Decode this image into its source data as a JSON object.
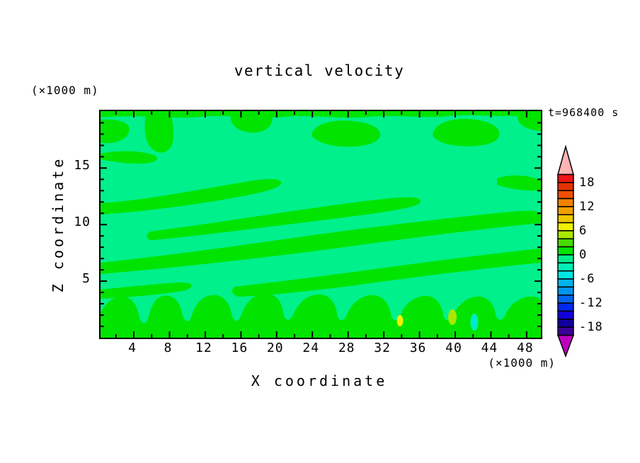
{
  "title": "vertical velocity",
  "time_label": "t=968400 s",
  "x_axis": {
    "label": "X coordinate",
    "unit_label": "(×1000 m)",
    "ticks": [
      4,
      8,
      12,
      16,
      20,
      24,
      28,
      32,
      36,
      40,
      44,
      48
    ],
    "minor_ticks": [
      2,
      6,
      10,
      14,
      18,
      22,
      26,
      30,
      34,
      38,
      42,
      46
    ],
    "range": [
      0,
      49.3
    ]
  },
  "y_axis": {
    "label": "Z coordinate",
    "unit_label": "(×1000 m)",
    "ticks": [
      5,
      10,
      15
    ],
    "minor_step": 1,
    "range": [
      0,
      20
    ]
  },
  "colorbar": {
    "tick_labels": [
      18,
      12,
      6,
      0,
      -6,
      -12,
      -18
    ],
    "range": [
      -20,
      20
    ],
    "segment_step": 2,
    "segment_colors_top_to_bottom": [
      "#F01414",
      "#E63200",
      "#F05000",
      "#F08200",
      "#F0A000",
      "#F0C800",
      "#F0F000",
      "#AAE800",
      "#46DC00",
      "#00E400",
      "#00F08C",
      "#00EEB8",
      "#00E6E6",
      "#00B4F0",
      "#0096F0",
      "#0064F0",
      "#0028F0",
      "#1400DC",
      "#0F00A0",
      "#3C0096"
    ],
    "over_color": "#FFB4B4",
    "under_color": "#BE00BE"
  },
  "chart_data": {
    "type": "heatmap",
    "title": "vertical velocity",
    "xlabel": "X coordinate (×1000 m)",
    "ylabel": "Z coordinate (×1000 m)",
    "annotation": "t=968400 s",
    "xlim": [
      0,
      49.3
    ],
    "ylim": [
      0,
      20
    ],
    "contour_levels": [
      -20,
      -18,
      -16,
      -14,
      -12,
      -10,
      -8,
      -6,
      -4,
      -2,
      0,
      2,
      4,
      6,
      8,
      10,
      12,
      14,
      16,
      18,
      20
    ],
    "colors": {
      "background": "#00F08C",
      "band": "#00E400",
      "spot_yellow": "#F0F000",
      "spot_yellow_green": "#AAE800",
      "spot_cyan": "#00E6E6",
      "spot_mint": "#00EEB8",
      "frame": "#000000"
    },
    "field_summary": {
      "description": "vertical velocity field dominated by values between -2 and 2; background shade is the -2..0 band, wavy diagonal stripes and bottom plumes are the 0..2 band",
      "background_value_range": [
        -2,
        0
      ],
      "stripe_value_range": [
        0,
        2
      ],
      "extreme_spots": [
        {
          "x": 33.8,
          "y": 1.5,
          "value_range": [
            6,
            8
          ]
        },
        {
          "x": 39.7,
          "y": 1.8,
          "value_range": [
            4,
            6
          ]
        },
        {
          "x": 42.2,
          "y": 1.4,
          "value_range": [
            -6,
            -4
          ]
        }
      ]
    },
    "legend_position": "right vertical colorbar with over/under arrow caps"
  }
}
